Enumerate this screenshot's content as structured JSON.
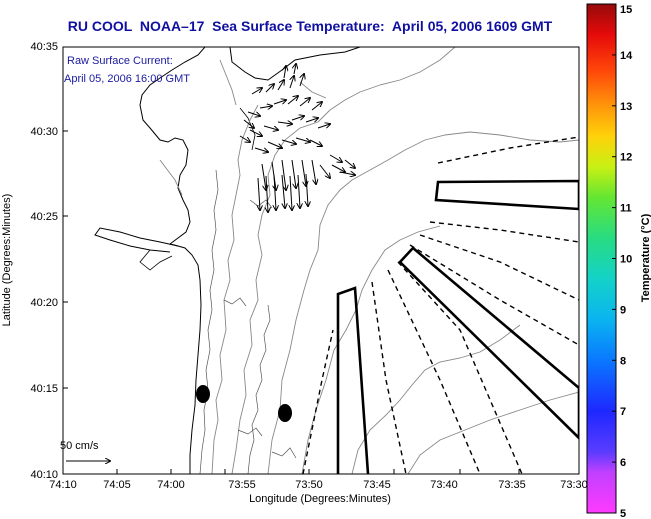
{
  "title": "RU COOL  NOAA–17  Sea Surface Temperature:  April 05, 2006 1609 GMT",
  "note": {
    "line1": "Raw Surface Current:",
    "line2": "April 05, 2006 16:00 GMT"
  },
  "scale": {
    "label": "50 cm/s"
  },
  "axes": {
    "xlabel": "Longitude (Degrees:Minutes)",
    "ylabel": "Latitude (Degrees:Minutes)",
    "xticks": [
      "74:10",
      "74:05",
      "74:00",
      "73:55",
      "73:50",
      "73:45",
      "73:40",
      "73:35",
      "73:30"
    ],
    "yticks": [
      "40:10",
      "40:15",
      "40:20",
      "40:25",
      "40:30",
      "40:35"
    ]
  },
  "colorbar": {
    "label": "Temperature (°C)",
    "ticks": [
      "5",
      "6",
      "7",
      "8",
      "9",
      "10",
      "11",
      "12",
      "13",
      "14",
      "15"
    ],
    "range": [
      5,
      15
    ]
  },
  "colors": {
    "title": "#1010a0",
    "note": "#1a1aa0"
  }
}
